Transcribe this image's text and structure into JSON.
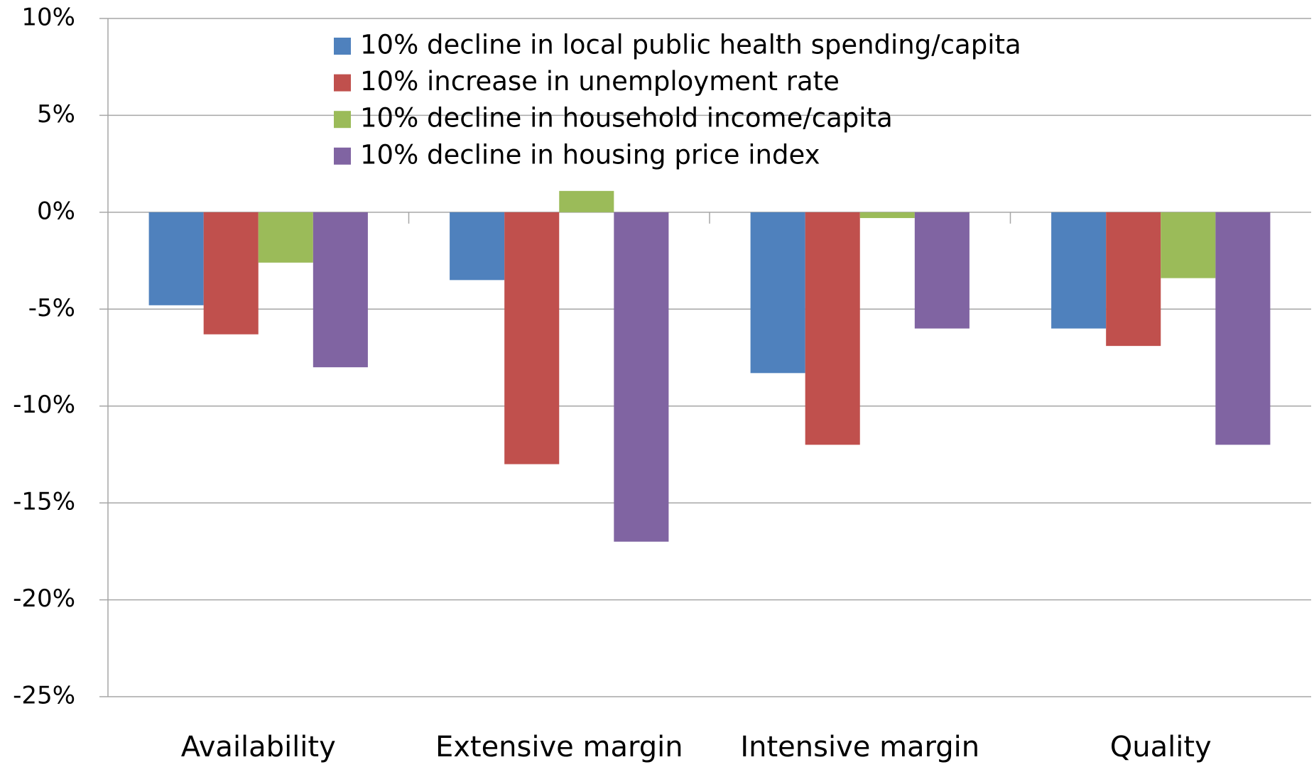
{
  "chart_data": {
    "type": "bar",
    "categories": [
      "Availability",
      "Extensive margin",
      "Intensive margin",
      "Quality"
    ],
    "series": [
      {
        "name": "10% decline in local public health spending/capita",
        "color": "#4f81bd",
        "values": [
          -4.8,
          -3.5,
          -8.3,
          -6.0
        ]
      },
      {
        "name": "10% increase in unemployment rate",
        "color": "#c0504d",
        "values": [
          -6.3,
          -13.0,
          -12.0,
          -6.9
        ]
      },
      {
        "name": "10% decline in household income/capita",
        "color": "#9bbb59",
        "values": [
          -2.6,
          1.1,
          -0.3,
          -3.4
        ]
      },
      {
        "name": "10% decline in housing price index",
        "color": "#8064a2",
        "values": [
          -8.0,
          -17.0,
          -6.0,
          -12.0
        ]
      }
    ],
    "ylim": [
      -25,
      10
    ],
    "yticks": [
      {
        "value": -25,
        "label": "-25%"
      },
      {
        "value": -20,
        "label": "-20%"
      },
      {
        "value": -15,
        "label": "-15%"
      },
      {
        "value": -10,
        "label": "-10%"
      },
      {
        "value": -5,
        "label": "-5%"
      },
      {
        "value": 0,
        "label": "0%"
      },
      {
        "value": 5,
        "label": "5%"
      },
      {
        "value": 10,
        "label": "10%"
      }
    ],
    "grid": true,
    "legend": "top"
  }
}
